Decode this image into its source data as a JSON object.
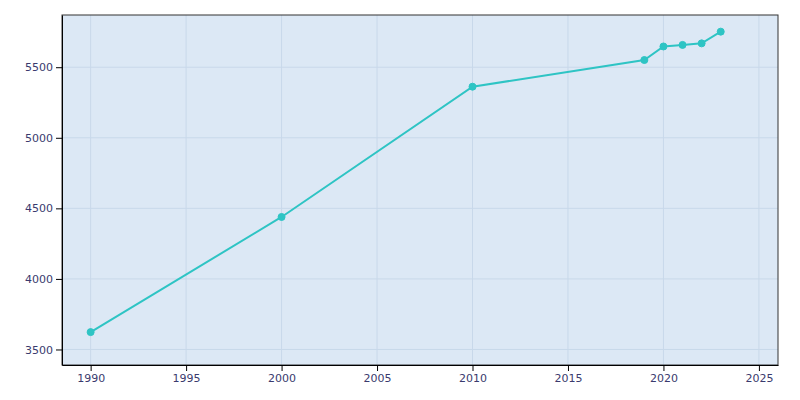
{
  "chart_data": {
    "type": "line",
    "x": [
      1990,
      2000,
      2010,
      2019,
      2020,
      2021,
      2022,
      2023
    ],
    "values": [
      3623,
      4439,
      5362,
      5551,
      5647,
      5658,
      5669,
      5752
    ],
    "color": "#2ec4c4",
    "marker": "circle",
    "xlim": [
      1988.5,
      2026
    ],
    "ylim": [
      3390,
      5870
    ],
    "xticks": [
      1990,
      1995,
      2000,
      2005,
      2010,
      2015,
      2020,
      2025
    ],
    "yticks": [
      3500,
      4000,
      4500,
      5000,
      5500
    ],
    "grid": true
  }
}
